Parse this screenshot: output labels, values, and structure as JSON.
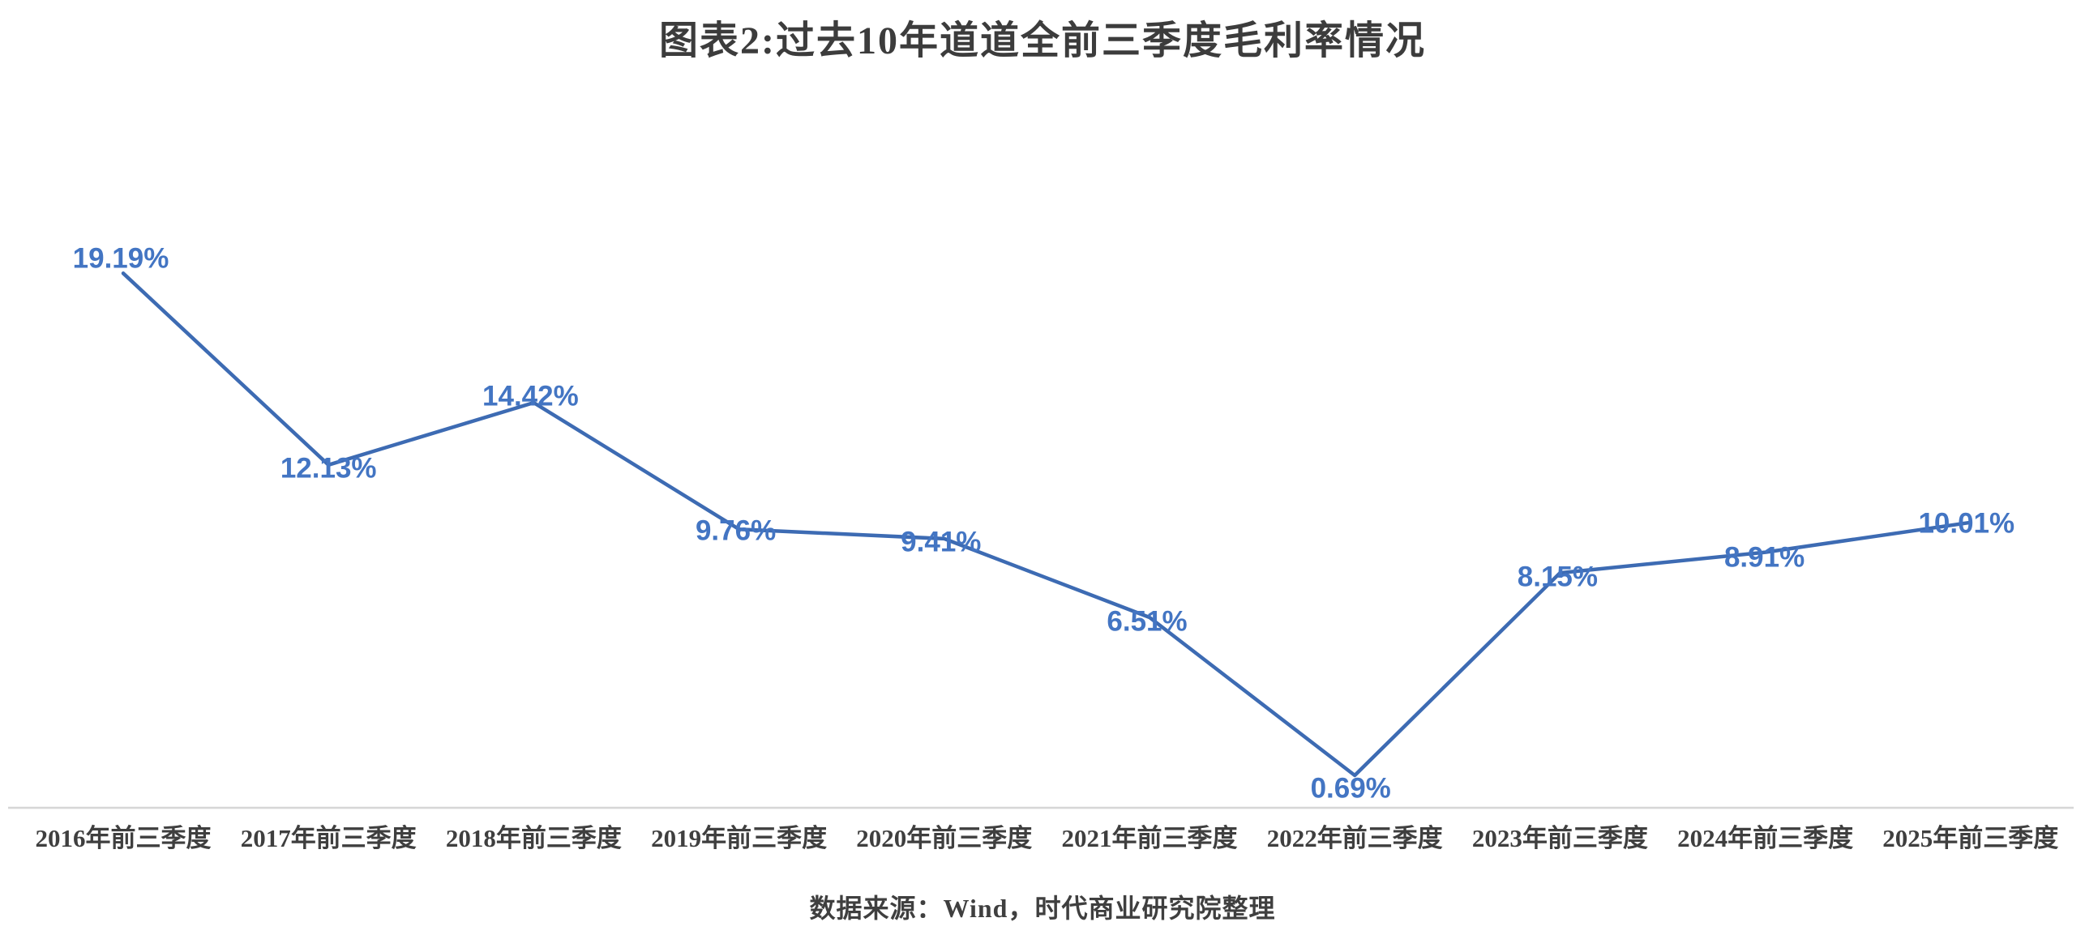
{
  "figure": {
    "title": "图表2:过去10年道道全前三季度毛利率情况",
    "source_note": "数据来源：Wind，时代商业研究院整理"
  },
  "colors": {
    "background": "#FFFFFF",
    "line": "#3D6BB3",
    "data_label": "#4375C3",
    "axis_line": "#D6D6D6",
    "title_text": "#3C3C3C",
    "axis_label_text": "#3F3F3F",
    "source_text": "#3F3F3F"
  },
  "chart_data": {
    "type": "line",
    "title": "图表2:过去10年道道全前三季度毛利率情况",
    "categories": [
      "2016年前三季度",
      "2017年前三季度",
      "2018年前三季度",
      "2019年前三季度",
      "2020年前三季度",
      "2021年前三季度",
      "2022年前三季度",
      "2023年前三季度",
      "2024年前三季度",
      "2025年前三季度"
    ],
    "values": [
      19.19,
      12.13,
      14.42,
      9.76,
      9.41,
      6.51,
      0.69,
      8.15,
      8.91,
      10.01
    ],
    "point_labels": [
      "19.19%",
      "12.13%",
      "14.42%",
      "9.76%",
      "9.41%",
      "6.51%",
      "0.69%",
      "8.15%",
      "8.91%",
      "10.01%"
    ],
    "unit": "%",
    "xlabel": "",
    "ylabel": "",
    "ylim": [
      0,
      21
    ],
    "grid": false,
    "legend": false,
    "markers": false,
    "data_labels_visible": true,
    "source": "数据来源：Wind，时代商业研究院整理"
  }
}
